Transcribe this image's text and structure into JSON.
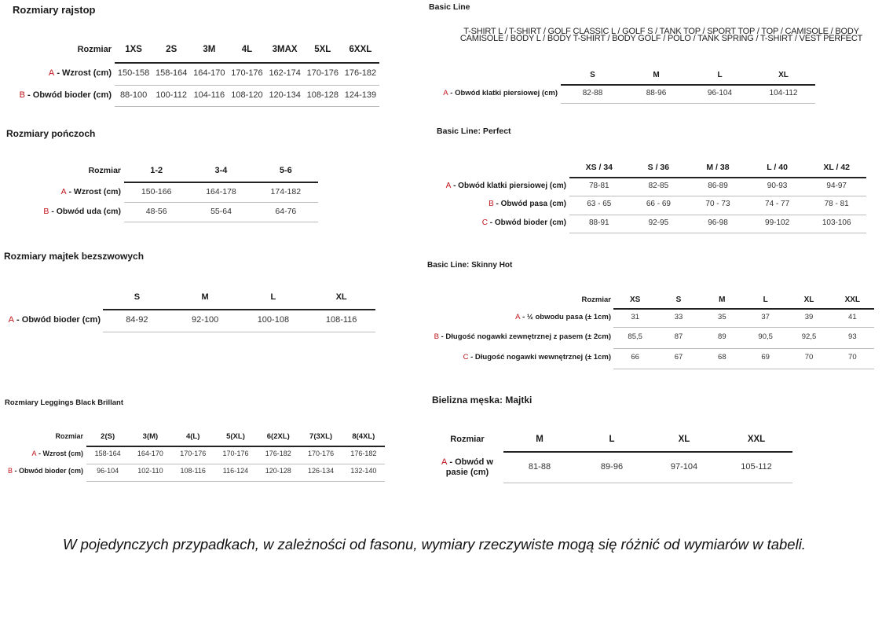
{
  "accent_letter_color": "#c0141c",
  "tables": [
    {
      "title": "Rozmiary rajstop",
      "corner": "Rozmiar",
      "columns": [
        "1XS",
        "2S",
        "3M",
        "4L",
        "3MAX",
        "5XL",
        "6XXL"
      ],
      "rows": [
        {
          "letter": "A",
          "label": " - Wzrost (cm)",
          "values": [
            "150-158",
            "158-164",
            "164-170",
            "170-176",
            "162-174",
            "170-176",
            "176-182"
          ]
        },
        {
          "letter": "B",
          "label": " - Obwód bioder (cm)",
          "values": [
            "88-100",
            "100-112",
            "104-116",
            "108-120",
            "120-134",
            "108-128",
            "124-139"
          ]
        }
      ]
    },
    {
      "title": "Rozmiary pończoch",
      "corner": "Rozmiar",
      "columns": [
        "1-2",
        "3-4",
        "5-6"
      ],
      "rows": [
        {
          "letter": "A",
          "label": " - Wzrost (cm)",
          "values": [
            "150-166",
            "164-178",
            "174-182"
          ]
        },
        {
          "letter": "B",
          "label": " - Obwód uda (cm)",
          "values": [
            "48-56",
            "55-64",
            "64-76"
          ]
        }
      ]
    },
    {
      "title": "Rozmiary majtek bezszwowych",
      "corner": "",
      "columns": [
        "S",
        "M",
        "L",
        "XL"
      ],
      "rows": [
        {
          "letter": "A",
          "label": " - Obwód bioder (cm)",
          "values": [
            "84-92",
            "92-100",
            "100-108",
            "108-116"
          ]
        }
      ]
    },
    {
      "title": "Rozmiary Leggings Black Brillant",
      "corner": "Rozmiar",
      "columns": [
        "2(S)",
        "3(M)",
        "4(L)",
        "5(XL)",
        "6(2XL)",
        "7(3XL)",
        "8(4XL)"
      ],
      "rows": [
        {
          "letter": "A",
          "label": " - Wzrost (cm)",
          "values": [
            "158-164",
            "164-170",
            "170-176",
            "170-176",
            "176-182",
            "170-176",
            "176-182"
          ]
        },
        {
          "letter": "B",
          "label": " - Obwód bioder (cm)",
          "values": [
            "96-104",
            "102-110",
            "108-116",
            "116-124",
            "120-128",
            "126-134",
            "132-140"
          ]
        }
      ]
    },
    {
      "title": "Basic Line",
      "subtitle_lines": [
        "T-SHIRT L / T-SHIRT / GOLF CLASSIC L / GOLF S / TANK TOP / SPORT TOP / TOP / CAMISOLE / BODY",
        "CAMISOLE / BODY L / BODY T-SHIRT / BODY GOLF / POLO / TANK SPRING / T-SHIRT / VEST PERFECT"
      ],
      "corner": "",
      "columns": [
        "S",
        "M",
        "L",
        "XL"
      ],
      "rows": [
        {
          "letter": "A",
          "label": " - Obwód klatki piersiowej (cm)",
          "values": [
            "82-88",
            "88-96",
            "96-104",
            "104-112"
          ]
        }
      ]
    },
    {
      "title": "Basic Line: Perfect",
      "corner": "",
      "columns": [
        "XS / 34",
        "S / 36",
        "M / 38",
        "L / 40",
        "XL / 42"
      ],
      "rows": [
        {
          "letter": "A",
          "label": " - Obwód klatki piersiowej (cm)",
          "values": [
            "78-81",
            "82-85",
            "86-89",
            "90-93",
            "94-97"
          ]
        },
        {
          "letter": "B",
          "label": " - Obwód pasa (cm)",
          "values": [
            "63 - 65",
            "66 - 69",
            "70 - 73",
            "74 - 77",
            "78 - 81"
          ]
        },
        {
          "letter": "C",
          "label": " - Obwód bioder (cm)",
          "values": [
            "88-91",
            "92-95",
            "96-98",
            "99-102",
            "103-106"
          ]
        }
      ]
    },
    {
      "title": "Basic Line: Skinny Hot",
      "corner": "Rozmiar",
      "columns": [
        "XS",
        "S",
        "M",
        "L",
        "XL",
        "XXL"
      ],
      "rows": [
        {
          "letter": "A",
          "label": " - ½ obwodu pasa (± 1cm)",
          "values": [
            "31",
            "33",
            "35",
            "37",
            "39",
            "41"
          ]
        },
        {
          "letter": "B",
          "label": " - Długość nogawki zewnętrznej z pasem (± 2cm)",
          "values": [
            "85,5",
            "87",
            "89",
            "90,5",
            "92,5",
            "93"
          ]
        },
        {
          "letter": "C",
          "label": " - Długość nogawki wewnętrznej (± 1cm)",
          "values": [
            "66",
            "67",
            "68",
            "69",
            "70",
            "70"
          ]
        }
      ]
    },
    {
      "title": "Bielizna męska: Majtki",
      "corner": "Rozmiar",
      "columns": [
        "M",
        "L",
        "XL",
        "XXL"
      ],
      "rows": [
        {
          "letter": "A",
          "label": " - Obwód w pasie (cm)",
          "values": [
            "81-88",
            "89-96",
            "97-104",
            "105-112"
          ]
        }
      ]
    }
  ],
  "footer_note": "W pojedynczych przypadkach, w zależności od fasonu, wymiary rzeczywiste mogą się różnić od wymiarów w tabeli."
}
